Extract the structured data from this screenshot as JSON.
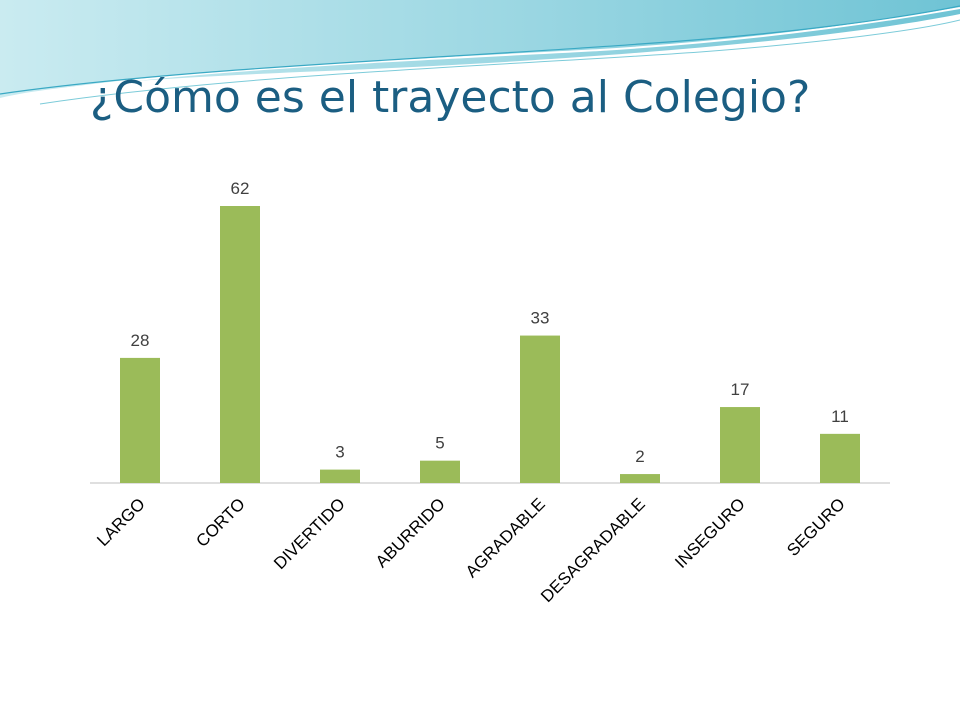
{
  "slide": {
    "title": "¿Cómo es el trayecto al Colegio?"
  },
  "colors": {
    "title": "#1b5e82",
    "bar": "#9bbb59",
    "header_band": "#8fd2df"
  },
  "chart_data": {
    "type": "bar",
    "title": "",
    "xlabel": "",
    "ylabel": "",
    "categories": [
      "LARGO",
      "CORTO",
      "DIVERTIDO",
      "ABURRIDO",
      "AGRADABLE",
      "DESAGRADABLE",
      "INSEGURO",
      "SEGURO"
    ],
    "values": [
      28,
      62,
      3,
      5,
      33,
      2,
      17,
      11
    ],
    "ylim": [
      0,
      70
    ],
    "data_labels": true,
    "grid": false,
    "legend": "none",
    "category_label_rotation": "45-degree"
  }
}
